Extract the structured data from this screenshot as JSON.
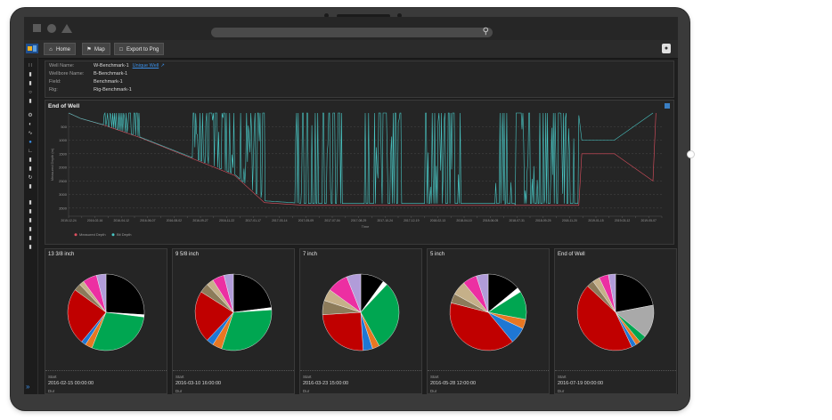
{
  "nav": {
    "home_label": "Home",
    "map_label": "Map",
    "export_label": "Export to Png"
  },
  "info": [
    {
      "key": "Well Name:",
      "value": "W-Benchmark-1",
      "link": "Unique Well"
    },
    {
      "key": "Wellbore Name:",
      "value": "B-Benchmark-1"
    },
    {
      "key": "Field:",
      "value": "Benchmark-1"
    },
    {
      "key": "Rig:",
      "value": "Rig-Benchmark-1"
    }
  ],
  "chart_title": "End of Well",
  "chart_data": {
    "type": "line",
    "title": "End of Well",
    "xlabel": "Time",
    "ylabel": "Measured Depth (m)",
    "x_ticks": [
      "2015-12-24",
      "2016-01-19",
      "2016-02-16",
      "2016-03-15",
      "2016-04-12",
      "2016-05-10",
      "2016-06-07",
      "2016-07-05",
      "2016-08-02",
      "2016-08-30",
      "2016-09-27",
      "2016-10-25",
      "2016-11-22",
      "2016-12-20",
      "2017-01-17",
      "2017-02-14",
      "2017-03-14",
      "2017-04-11",
      "2017-05-09",
      "2017-06-06",
      "2017-07-04",
      "2017-08-01",
      "2017-08-29",
      "2017-09-26",
      "2017-10-24",
      "2017-11-21",
      "2017-12-19",
      "2018-01-16",
      "2018-02-13",
      "2018-03-13",
      "2018-04-10",
      "2018-05-08",
      "2018-06-05",
      "2018-07-03",
      "2018-07-31",
      "2018-08-28",
      "2018-09-25",
      "2018-10-23",
      "2018-11-20",
      "2018-12-18",
      "2019-01-15",
      "2019-02-12",
      "2019-03-12",
      "2019-04-09",
      "2019-05-07",
      "2019-06-04"
    ],
    "y_ticks": [
      500,
      1000,
      1500,
      2000,
      2500,
      3000,
      3500
    ],
    "ylim": [
      0,
      3800
    ],
    "y_inverted": true,
    "legend": [
      "Measured Depth",
      "Bit Depth"
    ],
    "series": [
      {
        "name": "Measured Depth",
        "color": "#e05060"
      },
      {
        "name": "Bit Depth",
        "color": "#49c7c5"
      }
    ]
  },
  "panels": [
    {
      "title": "13 3/8 inch",
      "start_label": "Start",
      "start": "2016-02-15 00:00:00",
      "more": "Dur"
    },
    {
      "title": "9 5/8 inch",
      "start_label": "Start",
      "start": "2016-03-10 16:00:00",
      "more": "Dur"
    },
    {
      "title": "7 inch",
      "start_label": "Start",
      "start": "2016-03-23 15:00:00",
      "more": "Dur"
    },
    {
      "title": "5 inch",
      "start_label": "Start",
      "start": "2016-05-28 12:00:00",
      "more": "Dur"
    },
    {
      "title": "End of Well",
      "start_label": "Start",
      "start": "2016-07-19 00:00:00",
      "more": "Dur"
    }
  ],
  "pies": [
    [
      [
        "#000000",
        26
      ],
      [
        "#ffffff",
        1
      ],
      [
        "#00a651",
        29
      ],
      [
        "#e87722",
        3
      ],
      [
        "#1f77d4",
        2
      ],
      [
        "#c00000",
        24
      ],
      [
        "#8c7b5a",
        3
      ],
      [
        "#c5b089",
        2
      ],
      [
        "#ec2fa2",
        6
      ],
      [
        "#b19cd9",
        4
      ]
    ],
    [
      [
        "#000000",
        23
      ],
      [
        "#ffffff",
        1
      ],
      [
        "#00a651",
        31
      ],
      [
        "#e87722",
        4
      ],
      [
        "#1f77d4",
        3
      ],
      [
        "#c00000",
        22
      ],
      [
        "#8c7b5a",
        4
      ],
      [
        "#c5b089",
        3
      ],
      [
        "#ec2fa2",
        5
      ],
      [
        "#b19cd9",
        4
      ]
    ],
    [
      [
        "#000000",
        10
      ],
      [
        "#ffffff",
        2
      ],
      [
        "#00a651",
        30
      ],
      [
        "#e87722",
        3
      ],
      [
        "#1f77d4",
        4
      ],
      [
        "#c00000",
        25
      ],
      [
        "#8c7b5a",
        6
      ],
      [
        "#c5b089",
        5
      ],
      [
        "#ec2fa2",
        9
      ],
      [
        "#b19cd9",
        6
      ]
    ],
    [
      [
        "#000000",
        14
      ],
      [
        "#ffffff",
        2
      ],
      [
        "#00a651",
        12
      ],
      [
        "#e87722",
        4
      ],
      [
        "#1f77d4",
        7
      ],
      [
        "#c00000",
        40
      ],
      [
        "#8c7b5a",
        4
      ],
      [
        "#c5b089",
        6
      ],
      [
        "#ec2fa2",
        6
      ],
      [
        "#b19cd9",
        5
      ]
    ],
    [
      [
        "#000000",
        22
      ],
      [
        "#a9a9a9",
        14
      ],
      [
        "#00a651",
        3
      ],
      [
        "#e87722",
        2
      ],
      [
        "#1f77d4",
        2
      ],
      [
        "#c00000",
        44
      ],
      [
        "#8c7b5a",
        3
      ],
      [
        "#c5b089",
        3
      ],
      [
        "#ec2fa2",
        4
      ],
      [
        "#b19cd9",
        3
      ]
    ]
  ]
}
